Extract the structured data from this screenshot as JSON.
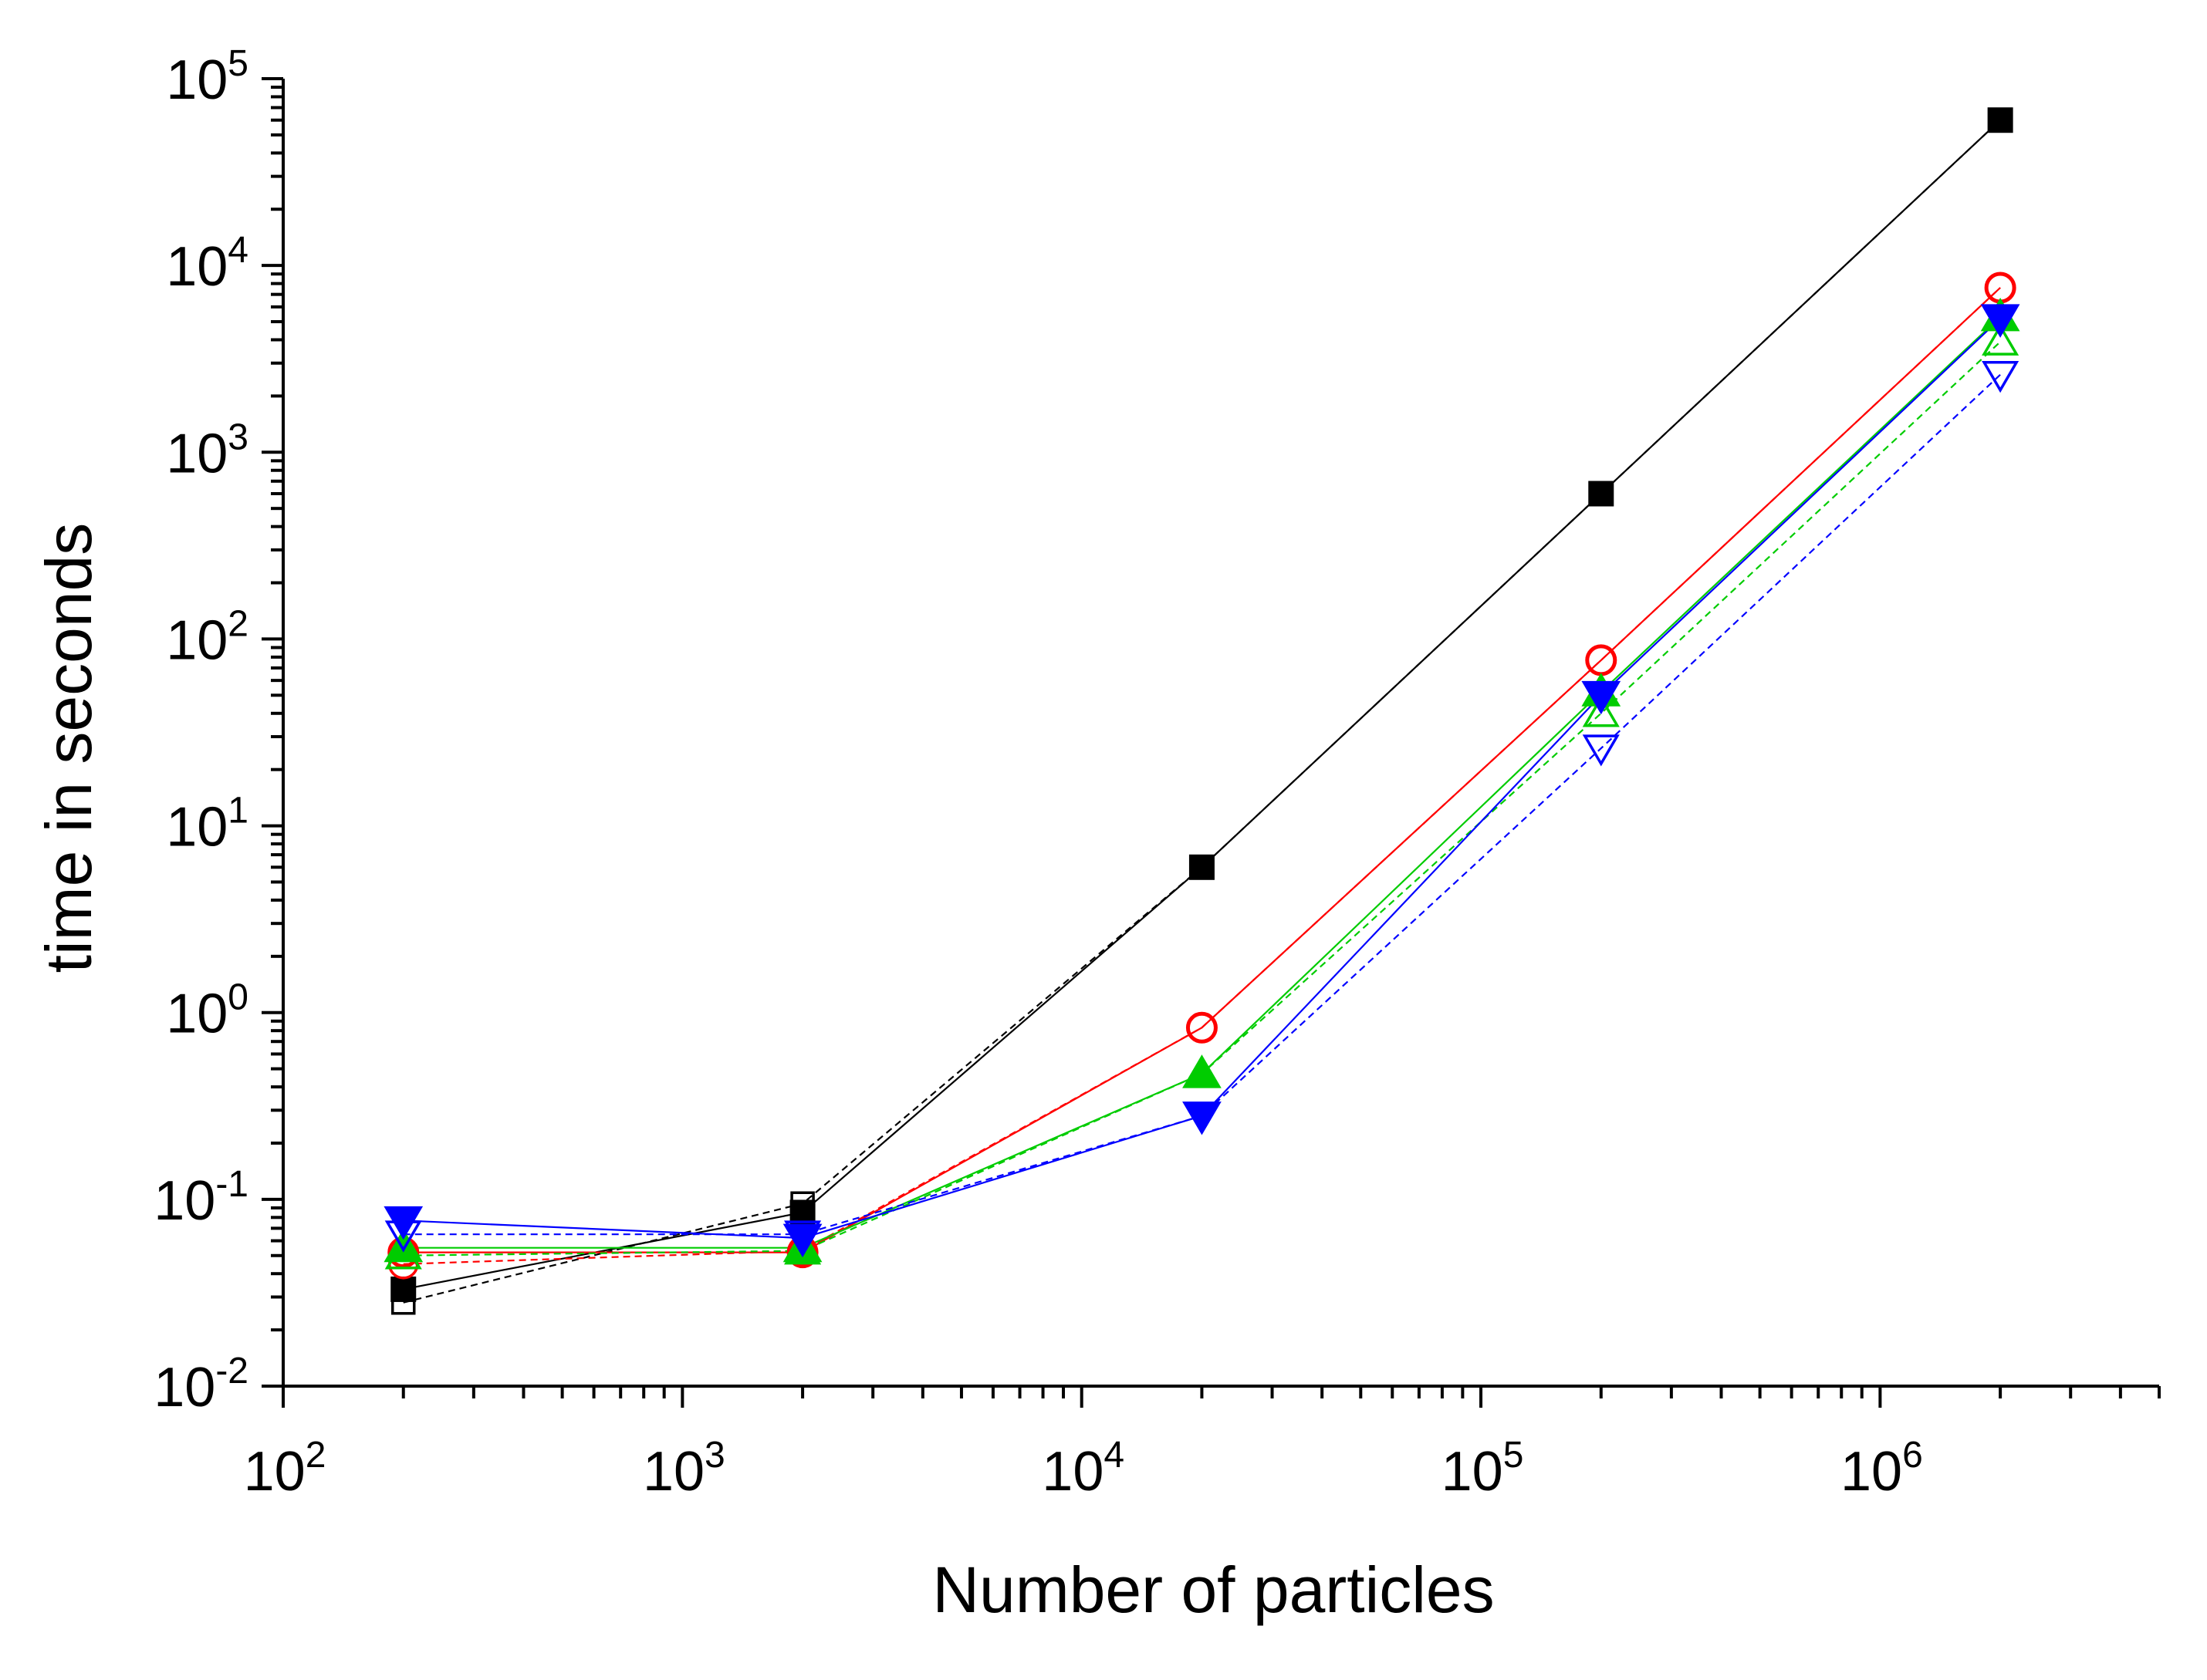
{
  "chart_data": {
    "type": "line",
    "title": "",
    "xlabel": "Number of particles",
    "ylabel": "time in seconds",
    "x_scale": "log",
    "y_scale": "log",
    "xlim": [
      100,
      5000000
    ],
    "ylim": [
      0.01,
      100000
    ],
    "grid": false,
    "legend": "none",
    "x_ticks": [
      {
        "base": "10",
        "exp": "2"
      },
      {
        "base": "10",
        "exp": "3"
      },
      {
        "base": "10",
        "exp": "4"
      },
      {
        "base": "10",
        "exp": "5"
      },
      {
        "base": "10",
        "exp": "6"
      }
    ],
    "y_ticks": [
      {
        "base": "10",
        "exp": "-2"
      },
      {
        "base": "10",
        "exp": "-1"
      },
      {
        "base": "10",
        "exp": "0"
      },
      {
        "base": "10",
        "exp": "1"
      },
      {
        "base": "10",
        "exp": "2"
      },
      {
        "base": "10",
        "exp": "3"
      },
      {
        "base": "10",
        "exp": "4"
      },
      {
        "base": "10",
        "exp": "5"
      }
    ],
    "x": [
      200,
      2000,
      20000,
      200000,
      2000000
    ],
    "series": [
      {
        "color": "#000000",
        "marker": "square",
        "marker_fill": "filled",
        "line": "solid",
        "values": [
          0.033,
          0.085,
          6.0,
          600,
          60000
        ]
      },
      {
        "color": "#000000",
        "marker": "square",
        "marker_fill": "open",
        "line": "dashed",
        "values": [
          0.028,
          0.095,
          6.0,
          600,
          60000
        ]
      },
      {
        "color": "#ff0000",
        "marker": "circle",
        "marker_fill": "open",
        "line": "solid",
        "values": [
          0.052,
          0.052,
          0.83,
          77,
          7600
        ]
      },
      {
        "color": "#ff0000",
        "marker": "circle",
        "marker_fill": "open",
        "line": "dashed",
        "values": [
          0.045,
          0.053,
          0.83,
          77,
          7600
        ]
      },
      {
        "color": "#00cc00",
        "marker": "triangle-up",
        "marker_fill": "filled",
        "line": "solid",
        "values": [
          0.055,
          0.055,
          0.47,
          52,
          5300
        ]
      },
      {
        "color": "#00cc00",
        "marker": "triangle-up",
        "marker_fill": "open",
        "line": "dashed",
        "values": [
          0.05,
          0.053,
          0.47,
          40,
          3900
        ]
      },
      {
        "color": "#0000ff",
        "marker": "triangle-down",
        "marker_fill": "filled",
        "line": "solid",
        "values": [
          0.077,
          0.062,
          0.28,
          50,
          5200
        ]
      },
      {
        "color": "#0000ff",
        "marker": "triangle-down",
        "marker_fill": "open",
        "line": "dashed",
        "values": [
          0.065,
          0.065,
          0.28,
          26,
          2600
        ]
      }
    ]
  }
}
